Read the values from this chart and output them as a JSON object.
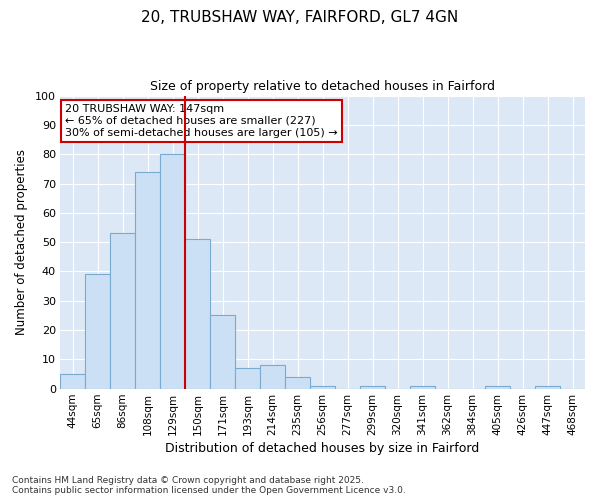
{
  "title1": "20, TRUBSHAW WAY, FAIRFORD, GL7 4GN",
  "title2": "Size of property relative to detached houses in Fairford",
  "xlabel": "Distribution of detached houses by size in Fairford",
  "ylabel": "Number of detached properties",
  "categories": [
    "44sqm",
    "65sqm",
    "86sqm",
    "108sqm",
    "129sqm",
    "150sqm",
    "171sqm",
    "193sqm",
    "214sqm",
    "235sqm",
    "256sqm",
    "277sqm",
    "299sqm",
    "320sqm",
    "341sqm",
    "362sqm",
    "384sqm",
    "405sqm",
    "426sqm",
    "447sqm",
    "468sqm"
  ],
  "values": [
    5,
    39,
    53,
    74,
    80,
    51,
    25,
    7,
    8,
    4,
    1,
    0,
    1,
    0,
    1,
    0,
    0,
    1,
    0,
    1,
    0
  ],
  "bar_color": "#cce0f5",
  "bar_edge_color": "#7aaad0",
  "vline_x_idx": 5,
  "vline_color": "#cc0000",
  "annotation_text": "20 TRUBSHAW WAY: 147sqm\n← 65% of detached houses are smaller (227)\n30% of semi-detached houses are larger (105) →",
  "annotation_box_color": "#cc0000",
  "annotation_text_color": "black",
  "ylim": [
    0,
    100
  ],
  "yticks": [
    0,
    10,
    20,
    30,
    40,
    50,
    60,
    70,
    80,
    90,
    100
  ],
  "plot_bg_color": "#dce8f5",
  "fig_bg_color": "#ffffff",
  "grid_color": "#ffffff",
  "footer1": "Contains HM Land Registry data © Crown copyright and database right 2025.",
  "footer2": "Contains public sector information licensed under the Open Government Licence v3.0."
}
